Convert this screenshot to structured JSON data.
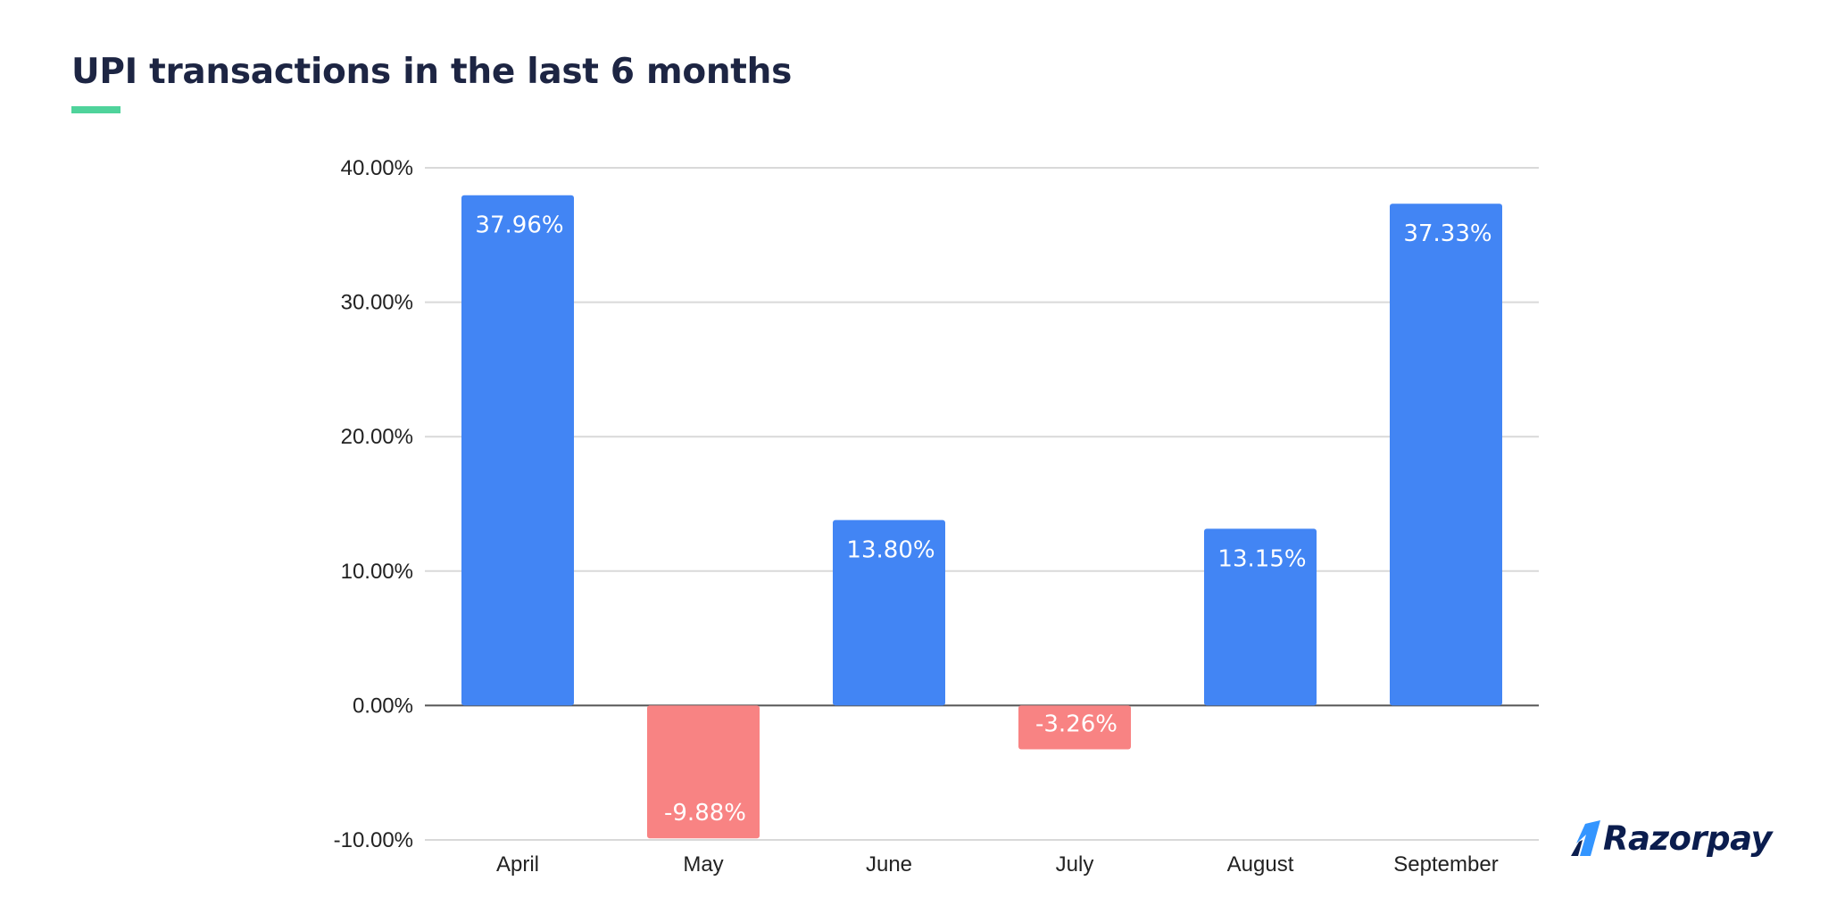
{
  "title": "UPI transactions in the last 6 months",
  "accent_color": "#4fd39b",
  "brand": {
    "name": "Razorpay",
    "logo_icon": "razorpay-logo-mark"
  },
  "chart_data": {
    "type": "bar",
    "title": "UPI transactions in the last 6 months",
    "xlabel": "",
    "ylabel": "",
    "categories": [
      "April",
      "May",
      "June",
      "July",
      "August",
      "September"
    ],
    "values": [
      37.96,
      -9.88,
      13.8,
      -3.26,
      13.15,
      37.33
    ],
    "data_labels": [
      "37.96%",
      "-9.88%",
      "13.80%",
      "-3.26%",
      "13.15%",
      "37.33%"
    ],
    "ylim": [
      -10,
      40
    ],
    "y_ticks": [
      40,
      30,
      20,
      10,
      0,
      -10
    ],
    "y_tick_labels": [
      "40.00%",
      "30.00%",
      "20.00%",
      "10.00%",
      "0.00%",
      "-10.00%"
    ],
    "grid": true,
    "legend": "none",
    "colors": {
      "positive": "#4285f4",
      "negative": "#f88383",
      "gridline": "#d9d9d9",
      "zero_line": "#555555"
    }
  }
}
